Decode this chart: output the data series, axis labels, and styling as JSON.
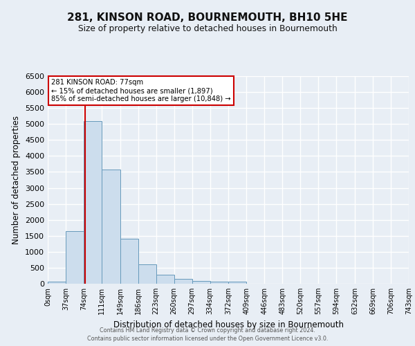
{
  "title": "281, KINSON ROAD, BOURNEMOUTH, BH10 5HE",
  "subtitle": "Size of property relative to detached houses in Bournemouth",
  "xlabel": "Distribution of detached houses by size in Bournemouth",
  "ylabel": "Number of detached properties",
  "bar_color": "#ccdded",
  "bar_edge_color": "#6699bb",
  "background_color": "#e8eef5",
  "grid_color": "#ffffff",
  "bin_labels": [
    "0sqm",
    "37sqm",
    "74sqm",
    "111sqm",
    "149sqm",
    "186sqm",
    "223sqm",
    "260sqm",
    "297sqm",
    "334sqm",
    "372sqm",
    "409sqm",
    "446sqm",
    "483sqm",
    "520sqm",
    "557sqm",
    "594sqm",
    "632sqm",
    "669sqm",
    "706sqm",
    "743sqm"
  ],
  "bar_heights": [
    75,
    1650,
    5100,
    3580,
    1400,
    600,
    285,
    145,
    90,
    65,
    65,
    0,
    0,
    0,
    0,
    0,
    0,
    0,
    0,
    0
  ],
  "ylim": [
    0,
    6500
  ],
  "property_value": 77,
  "annot_line1": "281 KINSON ROAD: 77sqm",
  "annot_line2": "← 15% of detached houses are smaller (1,897)",
  "annot_line3": "85% of semi-detached houses are larger (10,848) →",
  "red_line_color": "#cc0000",
  "annot_box_edge": "#cc0000",
  "yticks": [
    0,
    500,
    1000,
    1500,
    2000,
    2500,
    3000,
    3500,
    4000,
    4500,
    5000,
    5500,
    6000,
    6500
  ],
  "footer_line1": "Contains HM Land Registry data © Crown copyright and database right 2024.",
  "footer_line2": "Contains public sector information licensed under the Open Government Licence v3.0."
}
